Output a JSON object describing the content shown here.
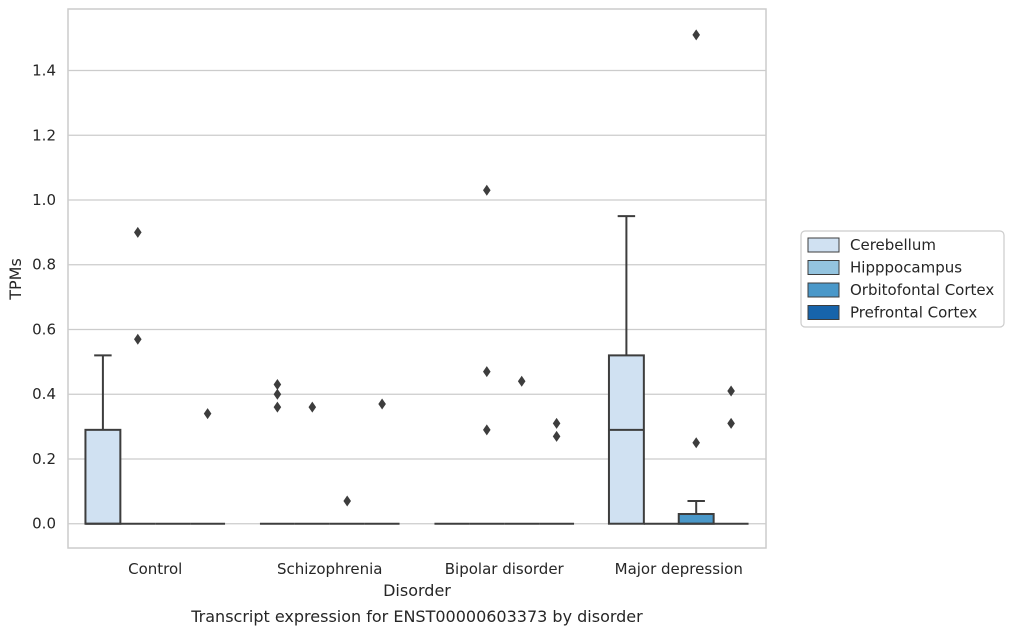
{
  "chart_data": {
    "type": "box",
    "caption": "Transcript expression for ENST00000603373 by disorder",
    "xlabel": "Disorder",
    "ylabel": "TPMs",
    "ylim": [
      -0.075,
      1.59
    ],
    "yticks": [
      0.0,
      0.2,
      0.4,
      0.6,
      0.8,
      1.0,
      1.2,
      1.4
    ],
    "ytick_labels": [
      "0.0",
      "0.2",
      "0.4",
      "0.6",
      "0.8",
      "1.0",
      "1.2",
      "1.4"
    ],
    "grid": "horizontal",
    "categories": [
      "Control",
      "Schizophrenia",
      "Bipolar disorder",
      "Major depression"
    ],
    "legend_position": "right",
    "series": [
      {
        "name": "Cerebellum",
        "color": "#d0e1f2",
        "boxes": [
          {
            "category": "Control",
            "min": 0.0,
            "q1": 0.0,
            "median": 0.0,
            "q3": 0.29,
            "max": 0.52,
            "outliers": []
          },
          {
            "category": "Schizophrenia",
            "min": 0.0,
            "q1": 0.0,
            "median": 0.0,
            "q3": 0.0,
            "max": 0.0,
            "outliers": [
              0.43,
              0.4,
              0.36
            ]
          },
          {
            "category": "Bipolar disorder",
            "min": 0.0,
            "q1": 0.0,
            "median": 0.0,
            "q3": 0.0,
            "max": 0.0,
            "outliers": []
          },
          {
            "category": "Major depression",
            "min": 0.0,
            "q1": 0.0,
            "median": 0.29,
            "q3": 0.52,
            "max": 0.95,
            "outliers": []
          }
        ]
      },
      {
        "name": "Hipppocampus",
        "color": "#94c4df",
        "boxes": [
          {
            "category": "Control",
            "min": 0.0,
            "q1": 0.0,
            "median": 0.0,
            "q3": 0.0,
            "max": 0.0,
            "outliers": [
              0.9,
              0.57
            ]
          },
          {
            "category": "Schizophrenia",
            "min": 0.0,
            "q1": 0.0,
            "median": 0.0,
            "q3": 0.0,
            "max": 0.0,
            "outliers": [
              0.36
            ]
          },
          {
            "category": "Bipolar disorder",
            "min": 0.0,
            "q1": 0.0,
            "median": 0.0,
            "q3": 0.0,
            "max": 0.0,
            "outliers": [
              1.03,
              0.47,
              0.29
            ]
          },
          {
            "category": "Major depression",
            "min": 0.0,
            "q1": 0.0,
            "median": 0.0,
            "q3": 0.0,
            "max": 0.0,
            "outliers": []
          }
        ]
      },
      {
        "name": "Orbitofontal Cortex",
        "color": "#4a98c9",
        "boxes": [
          {
            "category": "Control",
            "min": 0.0,
            "q1": 0.0,
            "median": 0.0,
            "q3": 0.0,
            "max": 0.0,
            "outliers": []
          },
          {
            "category": "Schizophrenia",
            "min": 0.0,
            "q1": 0.0,
            "median": 0.0,
            "q3": 0.0,
            "max": 0.0,
            "outliers": [
              0.07
            ]
          },
          {
            "category": "Bipolar disorder",
            "min": 0.0,
            "q1": 0.0,
            "median": 0.0,
            "q3": 0.0,
            "max": 0.0,
            "outliers": [
              0.44
            ]
          },
          {
            "category": "Major depression",
            "min": 0.0,
            "q1": 0.0,
            "median": 0.0,
            "q3": 0.03,
            "max": 0.07,
            "outliers": [
              1.51,
              0.25
            ]
          }
        ]
      },
      {
        "name": "Prefrontal Cortex",
        "color": "#1764ab",
        "boxes": [
          {
            "category": "Control",
            "min": 0.0,
            "q1": 0.0,
            "median": 0.0,
            "q3": 0.0,
            "max": 0.0,
            "outliers": [
              0.34
            ]
          },
          {
            "category": "Schizophrenia",
            "min": 0.0,
            "q1": 0.0,
            "median": 0.0,
            "q3": 0.0,
            "max": 0.0,
            "outliers": [
              0.37
            ]
          },
          {
            "category": "Bipolar disorder",
            "min": 0.0,
            "q1": 0.0,
            "median": 0.0,
            "q3": 0.0,
            "max": 0.0,
            "outliers": [
              0.31,
              0.27
            ]
          },
          {
            "category": "Major depression",
            "min": 0.0,
            "q1": 0.0,
            "median": 0.0,
            "q3": 0.0,
            "max": 0.0,
            "outliers": [
              0.41,
              0.31
            ]
          }
        ]
      }
    ]
  }
}
